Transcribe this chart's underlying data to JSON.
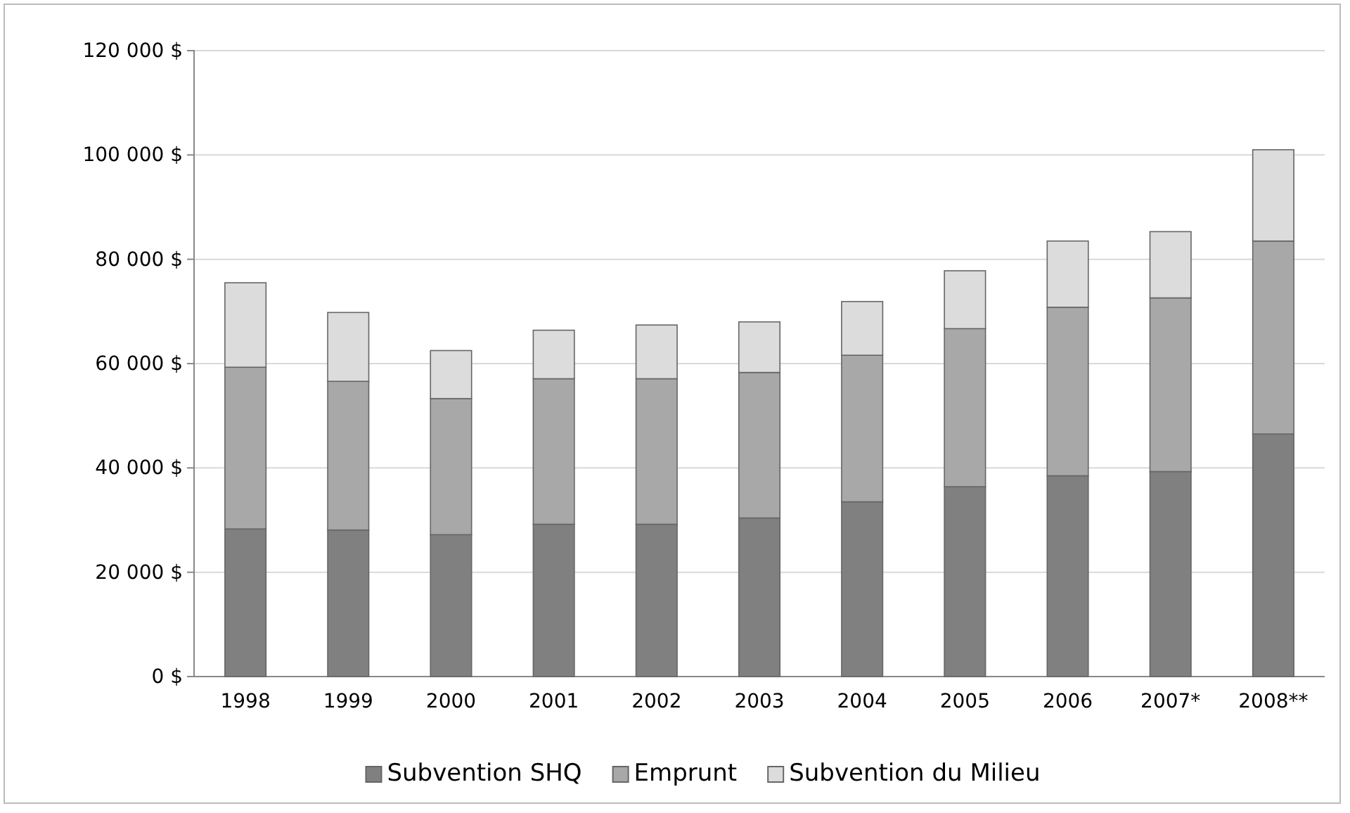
{
  "chart_data": {
    "type": "bar",
    "stacked": true,
    "categories": [
      "1998",
      "1999",
      "2000",
      "2001",
      "2002",
      "2003",
      "2004",
      "2005",
      "2006",
      "2007*",
      "2008**"
    ],
    "series": [
      {
        "name": "Subvention SHQ",
        "color": "#808080",
        "values": [
          28300,
          28100,
          27200,
          29200,
          29200,
          30400,
          33500,
          36400,
          38500,
          39300,
          46500
        ]
      },
      {
        "name": "Emprunt",
        "color": "#a8a8a8",
        "values": [
          31000,
          28500,
          26100,
          27900,
          27900,
          27900,
          28100,
          30300,
          32300,
          33300,
          37000
        ]
      },
      {
        "name": "Subvention du Milieu",
        "color": "#dcdcdc",
        "values": [
          16200,
          13200,
          9200,
          9300,
          10300,
          9700,
          10300,
          11100,
          12700,
          12700,
          17500
        ]
      }
    ],
    "ylim": [
      0,
      120000
    ],
    "yticks": [
      {
        "value": 0,
        "label": "0 $"
      },
      {
        "value": 20000,
        "label": "20 000 $"
      },
      {
        "value": 40000,
        "label": "40 000 $"
      },
      {
        "value": 60000,
        "label": "60 000 $"
      },
      {
        "value": 80000,
        "label": "80 000 $"
      },
      {
        "value": 100000,
        "label": "100 000 $"
      },
      {
        "value": 120000,
        "label": "120 000 $"
      }
    ],
    "grid": "y",
    "legend": "bottom"
  }
}
